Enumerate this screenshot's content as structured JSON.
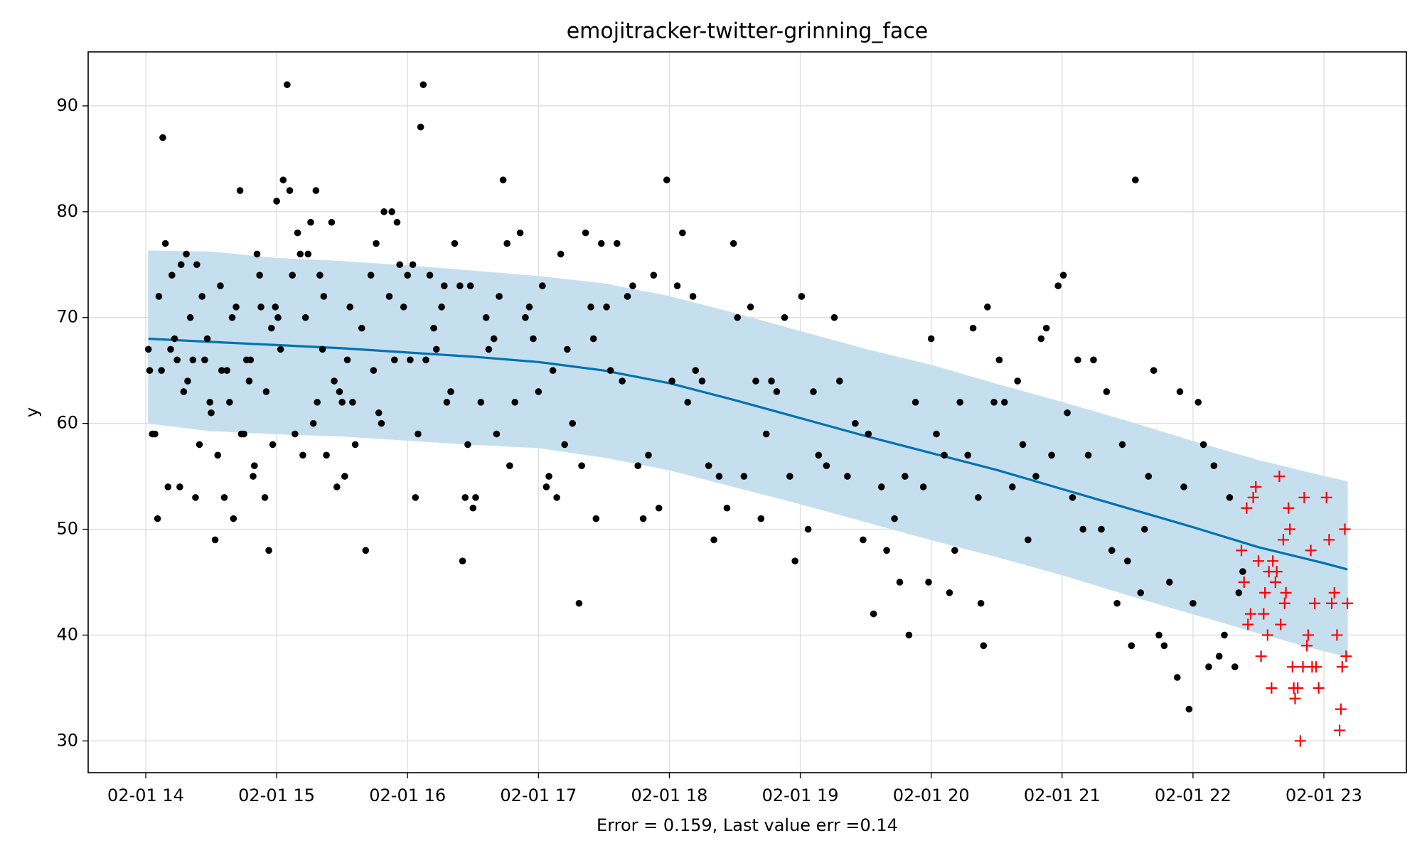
{
  "chart_data": {
    "type": "scatter",
    "title": "emojitracker-twitter-grinning_face",
    "xlabel": "Error = 0.159, Last value err =0.14",
    "ylabel": "y",
    "xlim": [
      13.56,
      23.63
    ],
    "ylim": [
      27.0,
      95.1
    ],
    "xticks": [
      {
        "value": 14,
        "label": "02-01 14"
      },
      {
        "value": 15,
        "label": "02-01 15"
      },
      {
        "value": 16,
        "label": "02-01 16"
      },
      {
        "value": 17,
        "label": "02-01 17"
      },
      {
        "value": 18,
        "label": "02-01 18"
      },
      {
        "value": 19,
        "label": "02-01 19"
      },
      {
        "value": 20,
        "label": "02-01 20"
      },
      {
        "value": 21,
        "label": "02-01 21"
      },
      {
        "value": 22,
        "label": "02-01 22"
      },
      {
        "value": 23,
        "label": "02-01 23"
      }
    ],
    "yticks": [
      30,
      40,
      50,
      60,
      70,
      80,
      90
    ],
    "grid": true,
    "forecast": {
      "color": "#0072b2",
      "band_color": "#c6dfee",
      "x": [
        14.02,
        14.5,
        15,
        15.5,
        16,
        16.5,
        17,
        17.5,
        18,
        18.5,
        19,
        19.5,
        20,
        20.5,
        21,
        21.5,
        22,
        22.5,
        23,
        23.18
      ],
      "values": [
        68,
        67.7,
        67.4,
        67.1,
        66.7,
        66.3,
        65.8,
        65.0,
        63.8,
        62.2,
        60.5,
        58.8,
        57.2,
        55.6,
        53.8,
        52.0,
        50.2,
        48.3,
        46.8,
        46.2
      ],
      "lower": [
        60,
        59.3,
        59,
        58.8,
        58.4,
        58,
        57.7,
        56.8,
        55.6,
        54,
        52.4,
        50.7,
        49,
        47.4,
        45.7,
        43.8,
        42,
        40.2,
        38.5,
        38
      ],
      "upper": [
        76.3,
        76.2,
        75.6,
        75.3,
        74.9,
        74.4,
        73.9,
        73.2,
        72.0,
        70.4,
        68.7,
        67.0,
        65.5,
        63.7,
        62.0,
        60.2,
        58.3,
        56.5,
        55,
        54.5
      ]
    },
    "observed": {
      "color": "#000000",
      "marker": "dot",
      "x": [
        14.02,
        14.03,
        14.05,
        14.07,
        14.09,
        14.1,
        14.12,
        14.13,
        14.15,
        14.17,
        14.19,
        14.2,
        14.22,
        14.24,
        14.26,
        14.27,
        14.29,
        14.31,
        14.32,
        14.34,
        14.36,
        14.38,
        14.39,
        14.41,
        14.43,
        14.45,
        14.47,
        14.49,
        14.5,
        14.53,
        14.55,
        14.57,
        14.58,
        14.6,
        14.62,
        14.64,
        14.66,
        14.67,
        14.69,
        14.72,
        14.73,
        14.75,
        14.77,
        14.79,
        14.8,
        14.82,
        14.83,
        14.85,
        14.87,
        14.88,
        14.91,
        14.92,
        14.94,
        14.96,
        14.97,
        14.99,
        15.0,
        15.01,
        15.03,
        15.05,
        15.08,
        15.1,
        15.12,
        15.14,
        15.16,
        15.18,
        15.2,
        15.22,
        15.24,
        15.26,
        15.28,
        15.3,
        15.31,
        15.33,
        15.35,
        15.36,
        15.38,
        15.42,
        15.44,
        15.46,
        15.48,
        15.5,
        15.52,
        15.54,
        15.56,
        15.58,
        15.6,
        15.65,
        15.68,
        15.72,
        15.74,
        15.76,
        15.78,
        15.8,
        15.82,
        15.86,
        15.88,
        15.9,
        15.92,
        15.94,
        15.97,
        16.0,
        16.02,
        16.04,
        16.06,
        16.08,
        16.1,
        16.12,
        16.14,
        16.17,
        16.2,
        16.22,
        16.26,
        16.28,
        16.3,
        16.33,
        16.36,
        16.4,
        16.42,
        16.44,
        16.46,
        16.48,
        16.5,
        16.52,
        16.56,
        16.6,
        16.62,
        16.66,
        16.68,
        16.7,
        16.73,
        16.76,
        16.78,
        16.82,
        16.86,
        16.9,
        16.93,
        16.96,
        17.0,
        17.03,
        17.06,
        17.08,
        17.11,
        17.14,
        17.17,
        17.2,
        17.22,
        17.26,
        17.31,
        17.33,
        17.36,
        17.4,
        17.42,
        17.44,
        17.48,
        17.52,
        17.55,
        17.6,
        17.64,
        17.68,
        17.72,
        17.76,
        17.8,
        17.84,
        17.88,
        17.92,
        17.98,
        18.02,
        18.06,
        18.1,
        18.14,
        18.18,
        18.2,
        18.25,
        18.3,
        18.34,
        18.38,
        18.44,
        18.49,
        18.52,
        18.57,
        18.62,
        18.66,
        18.7,
        18.74,
        18.78,
        18.82,
        18.88,
        18.92,
        18.96,
        19.01,
        19.06,
        19.1,
        19.14,
        19.2,
        19.26,
        19.3,
        19.36,
        19.42,
        19.48,
        19.52,
        19.56,
        19.62,
        19.66,
        19.72,
        19.76,
        19.8,
        19.83,
        19.88,
        19.94,
        19.98,
        20.0,
        20.04,
        20.1,
        20.14,
        20.18,
        20.22,
        20.28,
        20.32,
        20.36,
        20.38,
        20.4,
        20.43,
        20.48,
        20.52,
        20.56,
        20.62,
        20.66,
        20.7,
        20.74,
        20.8,
        20.84,
        20.88,
        20.92,
        20.97,
        21.01,
        21.04,
        21.08,
        21.12,
        21.16,
        21.2,
        21.24,
        21.3,
        21.34,
        21.38,
        21.42,
        21.46,
        21.5,
        21.53,
        21.56,
        21.6,
        21.63,
        21.66,
        21.7,
        21.74,
        21.78,
        21.82,
        21.88,
        21.9,
        21.93,
        21.97,
        22.0,
        22.04,
        22.08,
        22.12,
        22.16,
        22.2,
        22.24,
        22.28,
        22.32,
        22.35,
        22.38
      ],
      "values": [
        67,
        65,
        59,
        59,
        51,
        72,
        65,
        87,
        77,
        54,
        67,
        74,
        68,
        66,
        54,
        75,
        63,
        76,
        64,
        70,
        66,
        53,
        75,
        58,
        72,
        66,
        68,
        62,
        61,
        49,
        57,
        73,
        65,
        53,
        65,
        62,
        70,
        51,
        71,
        82,
        59,
        59,
        66,
        64,
        66,
        55,
        56,
        76,
        74,
        71,
        53,
        63,
        48,
        69,
        58,
        71,
        81,
        70,
        67,
        83,
        92,
        82,
        74,
        59,
        78,
        76,
        57,
        70,
        76,
        79,
        60,
        82,
        62,
        74,
        67,
        72,
        57,
        79,
        64,
        54,
        63,
        62,
        55,
        66,
        71,
        62,
        58,
        69,
        48,
        74,
        65,
        77,
        61,
        60,
        80,
        72,
        80,
        66,
        79,
        75,
        71,
        74,
        66,
        75,
        53,
        59,
        88,
        92,
        66,
        74,
        69,
        67,
        71,
        73,
        62,
        63,
        77,
        73,
        47,
        53,
        58,
        73,
        52,
        53,
        62,
        70,
        67,
        68,
        59,
        72,
        83,
        77,
        56,
        62,
        78,
        70,
        71,
        68,
        63,
        73,
        54,
        55,
        65,
        53,
        76,
        58,
        67,
        60,
        43,
        56,
        78,
        71,
        68,
        51,
        77,
        71,
        65,
        77,
        64,
        72,
        73,
        56,
        51,
        57,
        74,
        52,
        83,
        64,
        73,
        78,
        62,
        72,
        65,
        64,
        56,
        49,
        55,
        52,
        77,
        70,
        55,
        71,
        64,
        51,
        59,
        64,
        63,
        70,
        55,
        47,
        72,
        50,
        63,
        57,
        56,
        70,
        64,
        55,
        60,
        49,
        59,
        42,
        54,
        48,
        51,
        45,
        55,
        40,
        62,
        54,
        45,
        68,
        59,
        57,
        44,
        48,
        62,
        57,
        69,
        53,
        43,
        39,
        71,
        62,
        66,
        62,
        54,
        64,
        58,
        49,
        55,
        68,
        69,
        57,
        73,
        74,
        61,
        53,
        66,
        50,
        57,
        66,
        50,
        63,
        48,
        43,
        58,
        47,
        39,
        83,
        44,
        50,
        55,
        65,
        40,
        39,
        45,
        36,
        63,
        54,
        33,
        43,
        62,
        58,
        37,
        56,
        38,
        40,
        53,
        37,
        44,
        46
      ]
    },
    "holdout": {
      "color": "#ff0000",
      "marker": "plus",
      "x": [
        22.37,
        22.39,
        22.41,
        22.42,
        22.44,
        22.46,
        22.48,
        22.5,
        22.52,
        22.54,
        22.55,
        22.57,
        22.58,
        22.6,
        22.61,
        22.63,
        22.64,
        22.66,
        22.67,
        22.69,
        22.7,
        22.71,
        22.73,
        22.74,
        22.76,
        22.77,
        22.78,
        22.8,
        22.82,
        22.84,
        22.85,
        22.87,
        22.88,
        22.9,
        22.91,
        22.93,
        22.94,
        22.96,
        23.02,
        23.04,
        23.06,
        23.08,
        23.1,
        23.12,
        23.13,
        23.14,
        23.16,
        23.17,
        23.18
      ],
      "values": [
        48,
        45,
        52,
        41,
        42,
        53,
        54,
        47,
        38,
        42,
        44,
        40,
        46,
        35,
        47,
        45,
        46,
        55,
        41,
        49,
        43,
        44,
        52,
        50,
        37,
        35,
        34,
        35,
        30,
        37,
        53,
        39,
        40,
        48,
        37,
        43,
        37,
        35,
        53,
        49,
        43,
        44,
        40,
        31,
        33,
        37,
        50,
        38,
        43
      ]
    }
  }
}
